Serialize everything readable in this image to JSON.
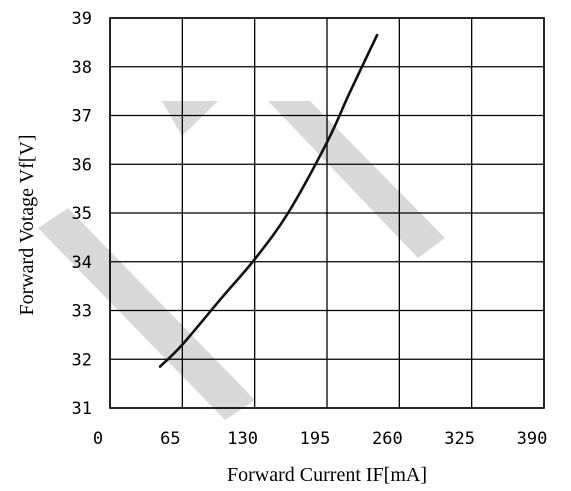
{
  "chart_data": {
    "type": "line",
    "title": "",
    "xlabel": "Forward Current IF[mA]",
    "ylabel": "Forward Votage Vf[V]",
    "xlim": [
      0,
      390
    ],
    "ylim": [
      31,
      39
    ],
    "x_ticks": [
      "0",
      "65",
      "130",
      "195",
      "260",
      "325",
      "390"
    ],
    "y_ticks": [
      "31",
      "32",
      "33",
      "34",
      "35",
      "36",
      "37",
      "38",
      "39"
    ],
    "grid": true,
    "legend": "none",
    "series": [
      {
        "color": "#111111",
        "x": [
          45,
          65,
          100,
          130,
          160,
          195,
          215,
          240
        ],
        "y": [
          31.85,
          32.3,
          33.25,
          34.05,
          35.0,
          36.45,
          37.45,
          38.65
        ]
      }
    ],
    "watermark": {
      "color": "#d9d9d9"
    }
  }
}
